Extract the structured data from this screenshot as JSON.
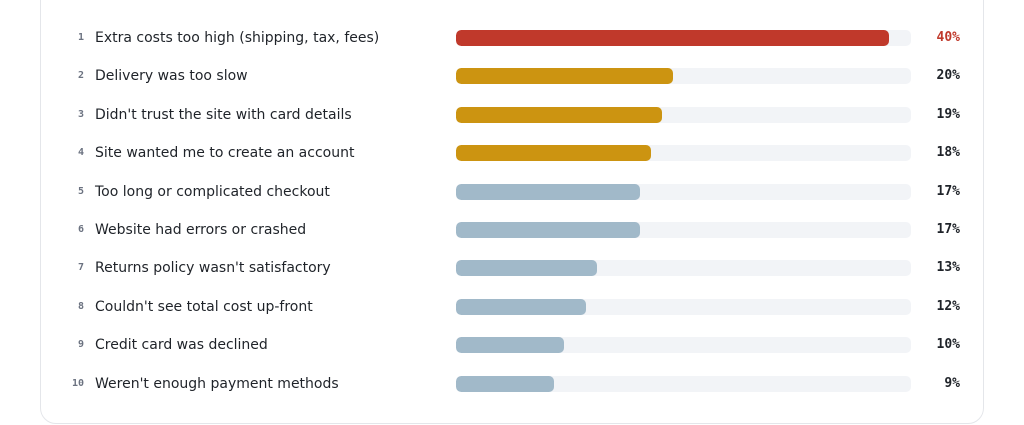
{
  "colors": {
    "top": "#c0392b",
    "mid": "#cc9411",
    "rest": "#a1b9c9",
    "track": "#f2f4f7",
    "text": "#1f2329",
    "rank": "#6b7280"
  },
  "chart_data": {
    "type": "bar",
    "orientation": "horizontal",
    "xlim": [
      0,
      42
    ],
    "grid": false,
    "legend": "none",
    "ranks": [
      "1",
      "2",
      "3",
      "4",
      "5",
      "6",
      "7",
      "8",
      "9",
      "10"
    ],
    "categories": [
      "Extra costs too high (shipping, tax, fees)",
      "Delivery was too slow",
      "Didn't trust the site with card details",
      "Site wanted me to create an account",
      "Too long or complicated checkout",
      "Website had errors or crashed",
      "Returns policy wasn't satisfactory",
      "Couldn't see total cost up-front",
      "Credit card was declined",
      "Weren't enough payment methods"
    ],
    "values": [
      40,
      20,
      19,
      18,
      17,
      17,
      13,
      12,
      10,
      9
    ],
    "value_labels": [
      "40%",
      "20%",
      "19%",
      "18%",
      "17%",
      "17%",
      "13%",
      "12%",
      "10%",
      "9%"
    ],
    "bar_colors": [
      "top",
      "mid",
      "mid",
      "mid",
      "rest",
      "rest",
      "rest",
      "rest",
      "rest",
      "rest"
    ]
  }
}
